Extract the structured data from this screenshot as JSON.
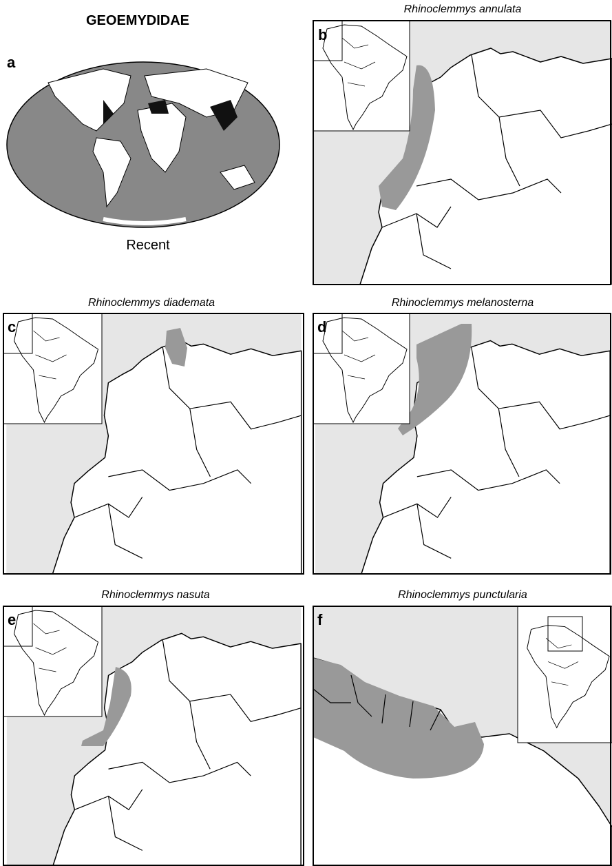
{
  "title": "GEOEMYDIDAE",
  "panels": [
    {
      "label": "a",
      "caption": "Recent"
    },
    {
      "label": "b",
      "title": "Rhinoclemmys annulata"
    },
    {
      "label": "c",
      "title": "Rhinoclemmys diademata"
    },
    {
      "label": "d",
      "title": "Rhinoclemmys melanosterna"
    },
    {
      "label": "e",
      "title": "Rhinoclemmys nasuta"
    },
    {
      "label": "f",
      "title": "Rhinoclemmys punctularia"
    }
  ]
}
